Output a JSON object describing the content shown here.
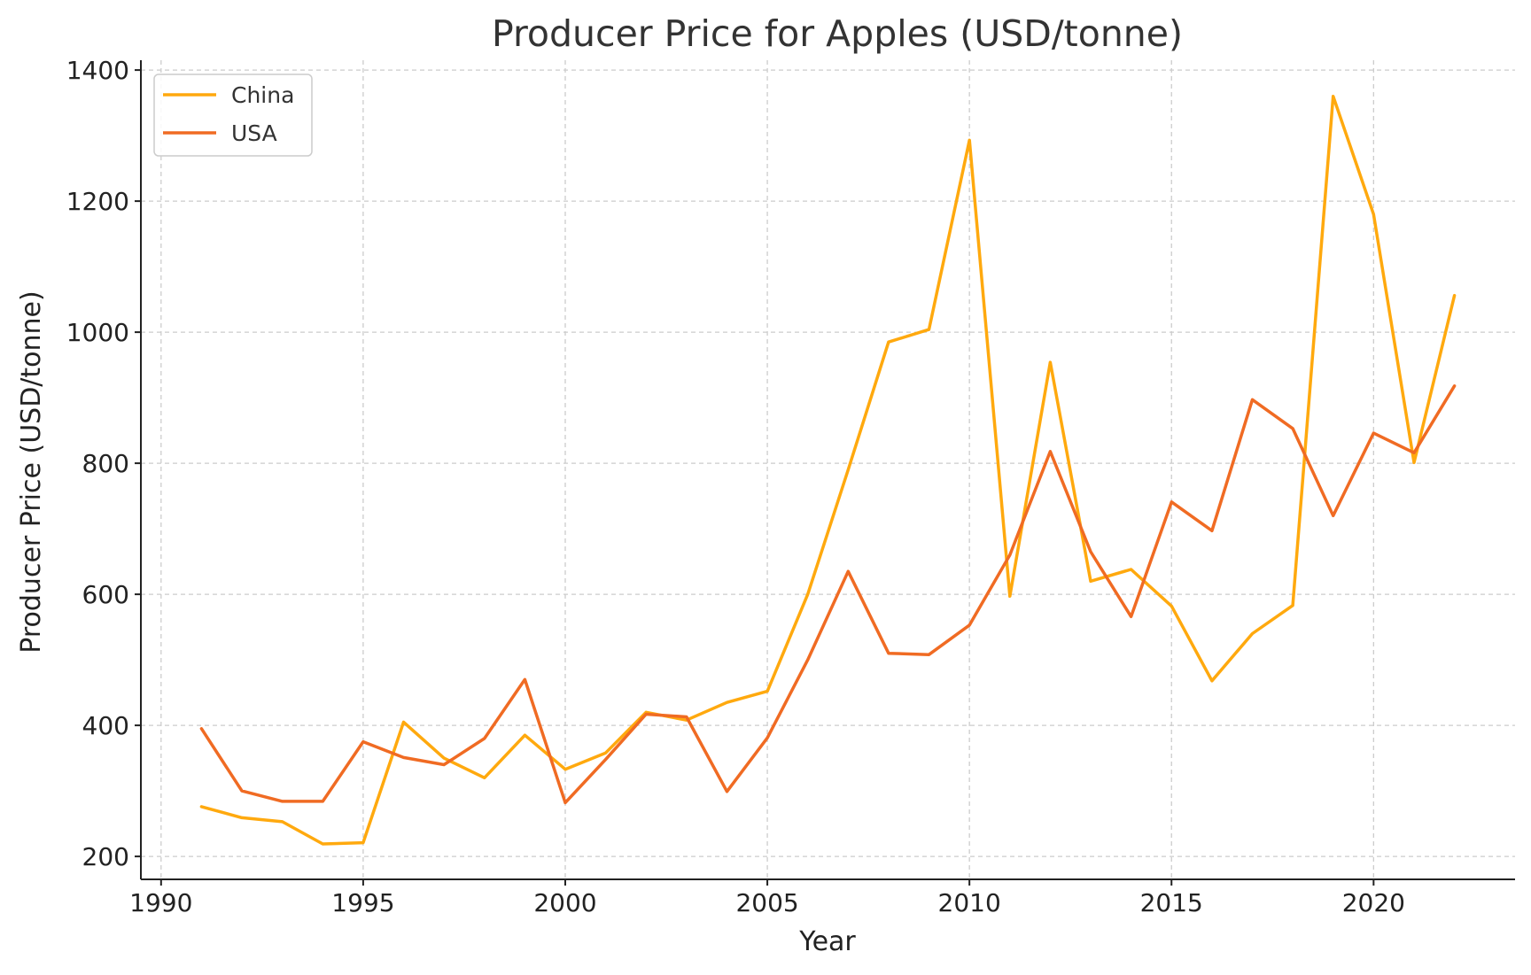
{
  "chart_data": {
    "type": "line",
    "title": "Producer Price for Apples (USD/tonne)",
    "xlabel": "Year",
    "ylabel": "Producer Price (USD/tonne)",
    "xlim": [
      1989.5,
      2023.5
    ],
    "ylim": [
      165,
      1415
    ],
    "x_ticks": [
      1990,
      1995,
      2000,
      2005,
      2010,
      2015,
      2020
    ],
    "y_ticks": [
      200,
      400,
      600,
      800,
      1000,
      1200,
      1400
    ],
    "grid": true,
    "legend_position": "top-left",
    "x": [
      1991,
      1992,
      1993,
      1994,
      1995,
      1996,
      1997,
      1998,
      1999,
      2000,
      2001,
      2002,
      2003,
      2004,
      2005,
      2006,
      2007,
      2008,
      2009,
      2010,
      2011,
      2012,
      2013,
      2014,
      2015,
      2016,
      2017,
      2018,
      2019,
      2020,
      2021,
      2022
    ],
    "series": [
      {
        "name": "China",
        "color": "#ffa90e",
        "values": [
          276,
          259,
          253,
          219,
          221,
          405,
          350,
          320,
          385,
          333,
          358,
          420,
          408,
          435,
          452,
          600,
          790,
          985,
          1004,
          1293,
          597,
          954,
          620,
          638,
          582,
          468,
          540,
          583,
          1360,
          1180,
          801,
          1056
        ]
      },
      {
        "name": "USA",
        "color": "#f06b23",
        "values": [
          395,
          300,
          284,
          284,
          375,
          351,
          340,
          380,
          470,
          282,
          348,
          417,
          413,
          299,
          381,
          500,
          635,
          510,
          508,
          553,
          660,
          818,
          665,
          566,
          741,
          697,
          897,
          853,
          720,
          846,
          816,
          918
        ]
      }
    ]
  }
}
